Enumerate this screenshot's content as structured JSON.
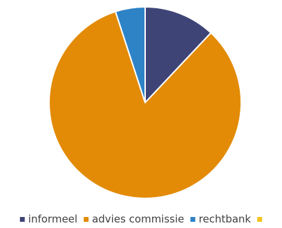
{
  "chart_data": {
    "type": "pie",
    "categories": [
      "informeel",
      "advies commissie",
      "rechtbank",
      ""
    ],
    "values": [
      12,
      83,
      5,
      0
    ],
    "colors": [
      "#3f4477",
      "#e38b06",
      "#2e82c6",
      "#f3c21c"
    ],
    "legend_position": "bottom",
    "start_angle_deg": 0,
    "direction": "clockwise",
    "slice_border_color": "#ffffff"
  }
}
